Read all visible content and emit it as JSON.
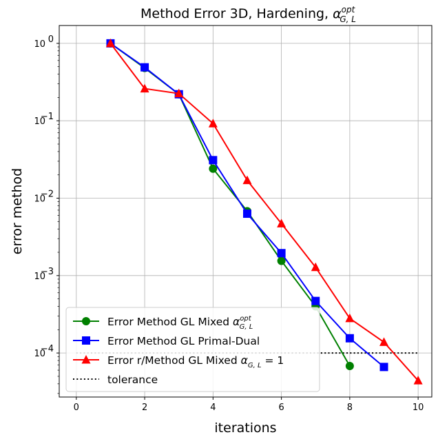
{
  "chart_data": {
    "type": "line",
    "title": "Method Error 3D, Hardening, α_{G,L}^{opt}",
    "title_parts": {
      "prefix": "Method Error 3D, Hardening, ",
      "symbol": "α",
      "subscript": "G, L",
      "superscript": "opt"
    },
    "xlabel": "iterations",
    "ylabel": "error method",
    "xlim": [
      -0.5,
      10.4
    ],
    "ylim": [
      2.7e-05,
      1.7
    ],
    "yscale": "log",
    "grid": true,
    "legend_position": "lower-left",
    "xticks": [
      0,
      2,
      4,
      6,
      8,
      10
    ],
    "xtick_labels": [
      "0",
      "2",
      "4",
      "6",
      "8",
      "10"
    ],
    "yticks": [
      0.0001,
      0.001,
      0.01,
      0.1,
      1
    ],
    "ytick_labels": [
      {
        "base": "10",
        "exp": "−4"
      },
      {
        "base": "10",
        "exp": "−3"
      },
      {
        "base": "10",
        "exp": "−2"
      },
      {
        "base": "10",
        "exp": "−1"
      },
      {
        "base": "10",
        "exp": "0"
      }
    ],
    "series": [
      {
        "name": "Error Method GL Mixed α_{G,L}^{opt}",
        "legend_parts": {
          "prefix": "Error Method GL Mixed ",
          "symbol": "α",
          "subscript": "G, L",
          "superscript": "opt",
          "suffix": ""
        },
        "color": "#008000",
        "marker": "circle",
        "line": "solid",
        "x": [
          1,
          2,
          3,
          4,
          5,
          6,
          7,
          8
        ],
        "y": [
          1.0,
          0.48,
          0.22,
          0.024,
          0.0068,
          0.00155,
          0.0004,
          6.8e-05
        ]
      },
      {
        "name": "Error Method GL Primal-Dual",
        "legend_parts": {
          "prefix": "Error Method GL Primal-Dual",
          "symbol": "",
          "subscript": "",
          "superscript": "",
          "suffix": ""
        },
        "color": "#0000ff",
        "marker": "square",
        "line": "solid",
        "x": [
          1,
          2,
          3,
          4,
          5,
          6,
          7,
          8,
          9
        ],
        "y": [
          1.0,
          0.49,
          0.22,
          0.031,
          0.0063,
          0.00195,
          0.00047,
          0.000155,
          6.6e-05
        ]
      },
      {
        "name": "Error r/Method GL Mixed α_{G,L} = 1",
        "legend_parts": {
          "prefix": "Error r/Method GL Mixed ",
          "symbol": "α",
          "subscript": "G, L",
          "superscript": "",
          "suffix": " = 1"
        },
        "color": "#ff0000",
        "marker": "triangle",
        "line": "solid",
        "x": [
          1,
          2,
          3,
          4,
          5,
          6,
          7,
          8,
          9,
          10
        ],
        "y": [
          1.0,
          0.26,
          0.225,
          0.092,
          0.017,
          0.0047,
          0.00128,
          0.00028,
          0.000138,
          4.4e-05
        ]
      },
      {
        "name": "tolerance",
        "legend_parts": {
          "prefix": "tolerance",
          "symbol": "",
          "subscript": "",
          "superscript": "",
          "suffix": ""
        },
        "color": "#000000",
        "marker": "none",
        "line": "dotted",
        "x": [
          0,
          10
        ],
        "y": [
          0.0001,
          0.0001
        ]
      }
    ]
  }
}
